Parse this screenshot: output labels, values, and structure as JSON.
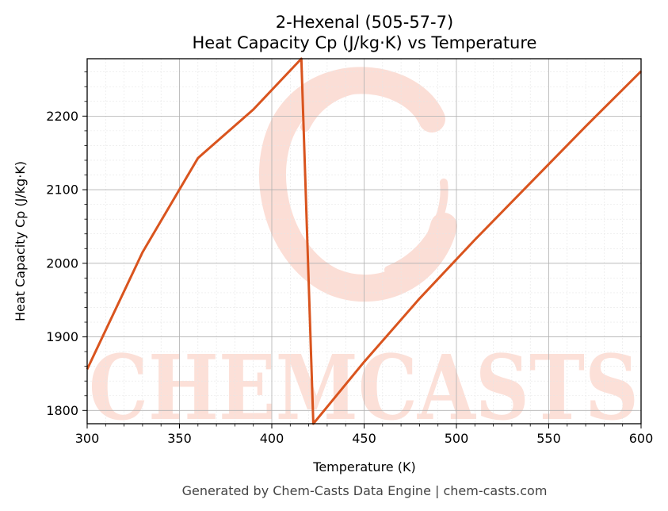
{
  "chart_data": {
    "type": "line",
    "title": [
      "2-Hexenal (505-57-7)",
      "Heat Capacity Cp (J/kg·K) vs Temperature"
    ],
    "xlabel": "Temperature (K)",
    "ylabel": "Heat Capacity Cp (J/kg·K)",
    "xlim": [
      300,
      600
    ],
    "ylim": [
      1782,
      2278
    ],
    "xticks": [
      300,
      350,
      400,
      450,
      500,
      550,
      600
    ],
    "yticks": [
      1800,
      1900,
      2000,
      2100,
      2200
    ],
    "grid": true,
    "series": [
      {
        "color": "#d9541e",
        "x": [
          300,
          330,
          360,
          390,
          416,
          416,
          422.5,
          422.5,
          450,
          480,
          510,
          540,
          570,
          600
        ],
        "y": [
          1856,
          2015,
          2143,
          2209,
          2278,
          2278,
          1782,
          1782,
          1866,
          1952,
          2032,
          2109,
          2186,
          2261
        ]
      }
    ]
  },
  "watermark": {
    "text": "CHEMCASTS",
    "color": "#fbd6cc"
  },
  "footer": "Generated by Chem-Casts Data Engine | chem-casts.com"
}
